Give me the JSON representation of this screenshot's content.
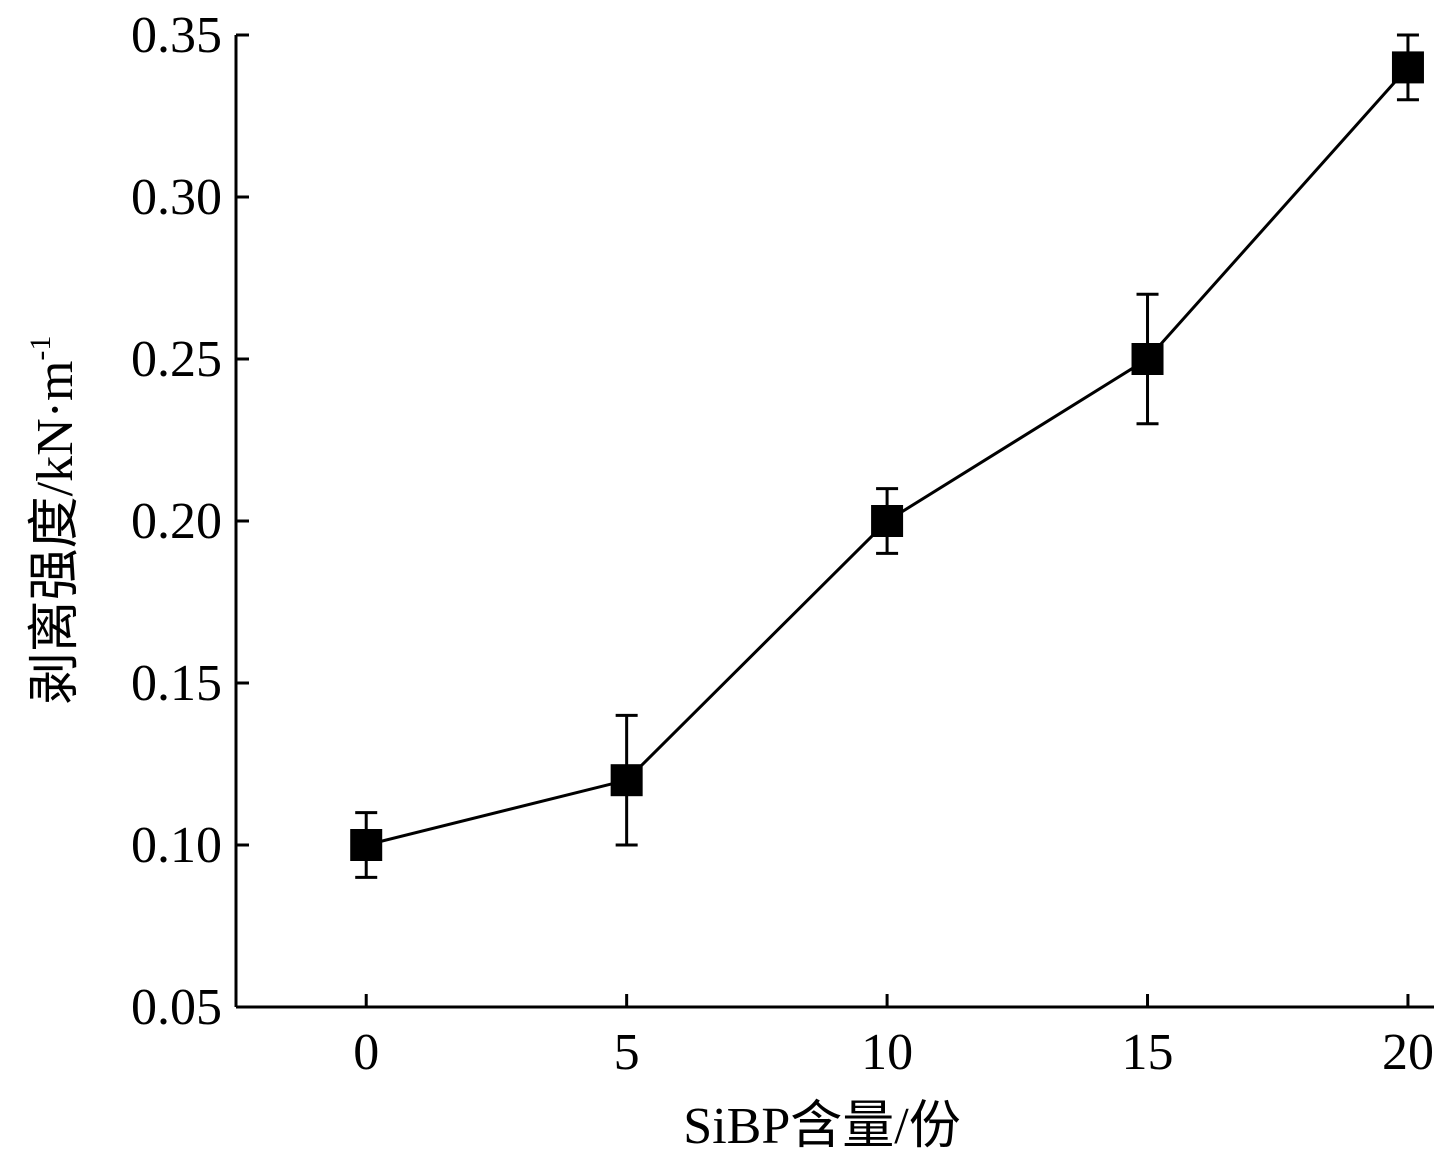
{
  "chart_data": {
    "type": "line",
    "title": "",
    "xlabel": "SiBP含量/份",
    "ylabel": "剥离强度/kN·m",
    "ylabel_superscript": "-1",
    "x": [
      0,
      5,
      10,
      15,
      20
    ],
    "series": [
      {
        "values": [
          0.1,
          0.12,
          0.2,
          0.25,
          0.34
        ],
        "errors": [
          0.01,
          0.02,
          0.01,
          0.02,
          0.01
        ],
        "marker": "square",
        "color": "#000000"
      }
    ],
    "xlim": [
      -2.5,
      20.5
    ],
    "ylim": [
      0.05,
      0.35
    ],
    "xticks": [
      0,
      5,
      10,
      15,
      20
    ],
    "xtick_labels": [
      "0",
      "5",
      "10",
      "15",
      "20"
    ],
    "yticks": [
      0.05,
      0.1,
      0.15,
      0.2,
      0.25,
      0.3,
      0.35
    ],
    "ytick_labels": [
      "0.05",
      "0.10",
      "0.15",
      "0.20",
      "0.25",
      "0.30",
      "0.35"
    ],
    "grid": false,
    "legend": "none"
  }
}
